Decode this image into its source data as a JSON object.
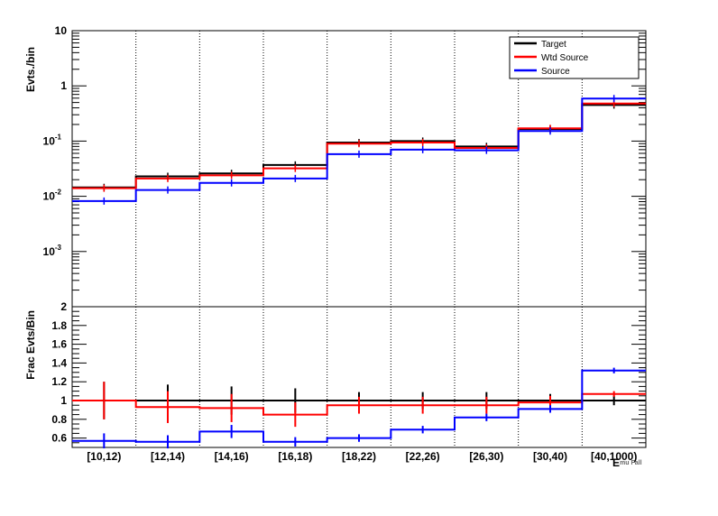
{
  "chart_data": [
    {
      "type": "line",
      "ylabel": "Evts./bin",
      "yscale": "log",
      "ylim": [
        0.0001,
        10
      ],
      "y_ticks": [
        {
          "value": 0.001,
          "base": "10",
          "exp": "-3"
        },
        {
          "value": 0.01,
          "base": "10",
          "exp": "-2"
        },
        {
          "value": 0.1,
          "base": "10",
          "exp": "-1"
        },
        {
          "value": 1,
          "base": "1",
          "exp": ""
        },
        {
          "value": 10,
          "base": "10",
          "exp": ""
        }
      ],
      "categories": [
        "[10,12)",
        "[12,14)",
        "[14,16)",
        "[16,18)",
        "[18,22)",
        "[22,26)",
        "[26,30)",
        "[30,40)",
        "[40,1000)"
      ],
      "legend_position": "top-right",
      "series": [
        {
          "name": "Target",
          "color": "#000000",
          "values": [
            0.0145,
            0.023,
            0.026,
            0.037,
            0.094,
            0.1,
            0.08,
            0.165,
            0.45
          ]
        },
        {
          "name": "Wtd Source",
          "color": "#ff0000",
          "values": [
            0.014,
            0.021,
            0.024,
            0.032,
            0.09,
            0.094,
            0.075,
            0.17,
            0.48
          ]
        },
        {
          "name": "Source",
          "color": "#0000ff",
          "values": [
            0.0082,
            0.013,
            0.0175,
            0.021,
            0.058,
            0.07,
            0.068,
            0.152,
            0.59
          ]
        }
      ]
    },
    {
      "type": "line",
      "ylabel": "Frac Evts/Bin",
      "ylim": [
        0.5,
        2
      ],
      "y_ticks": [
        "0.6",
        "0.8",
        "1",
        "1.2",
        "1.4",
        "1.6",
        "1.8",
        "2"
      ],
      "categories": [
        "[10,12)",
        "[12,14)",
        "[14,16)",
        "[16,18)",
        "[18,22)",
        "[22,26)",
        "[26,30)",
        "[30,40)",
        "[40,1000)"
      ],
      "xlabel": "E",
      "xlabel_sub": "mu Fall",
      "series": [
        {
          "name": "Target",
          "color": "#000000",
          "values": [
            1,
            1,
            1,
            1,
            1,
            1,
            1,
            1,
            1
          ],
          "errors": [
            0.2,
            0.17,
            0.15,
            0.13,
            0.09,
            0.09,
            0.09,
            0.07,
            0.05
          ]
        },
        {
          "name": "Wtd Source",
          "color": "#ff0000",
          "values": [
            1.0,
            0.93,
            0.92,
            0.85,
            0.95,
            0.95,
            0.95,
            0.98,
            1.07
          ],
          "errors": [
            0.2,
            0.17,
            0.15,
            0.13,
            0.09,
            0.09,
            0.09,
            0.07,
            0.03
          ]
        },
        {
          "name": "Source",
          "color": "#0000ff",
          "values": [
            0.57,
            0.56,
            0.67,
            0.56,
            0.6,
            0.69,
            0.82,
            0.91,
            1.32
          ],
          "errors": [
            0.08,
            0.07,
            0.07,
            0.05,
            0.04,
            0.04,
            0.04,
            0.04,
            0.03
          ]
        }
      ]
    }
  ]
}
